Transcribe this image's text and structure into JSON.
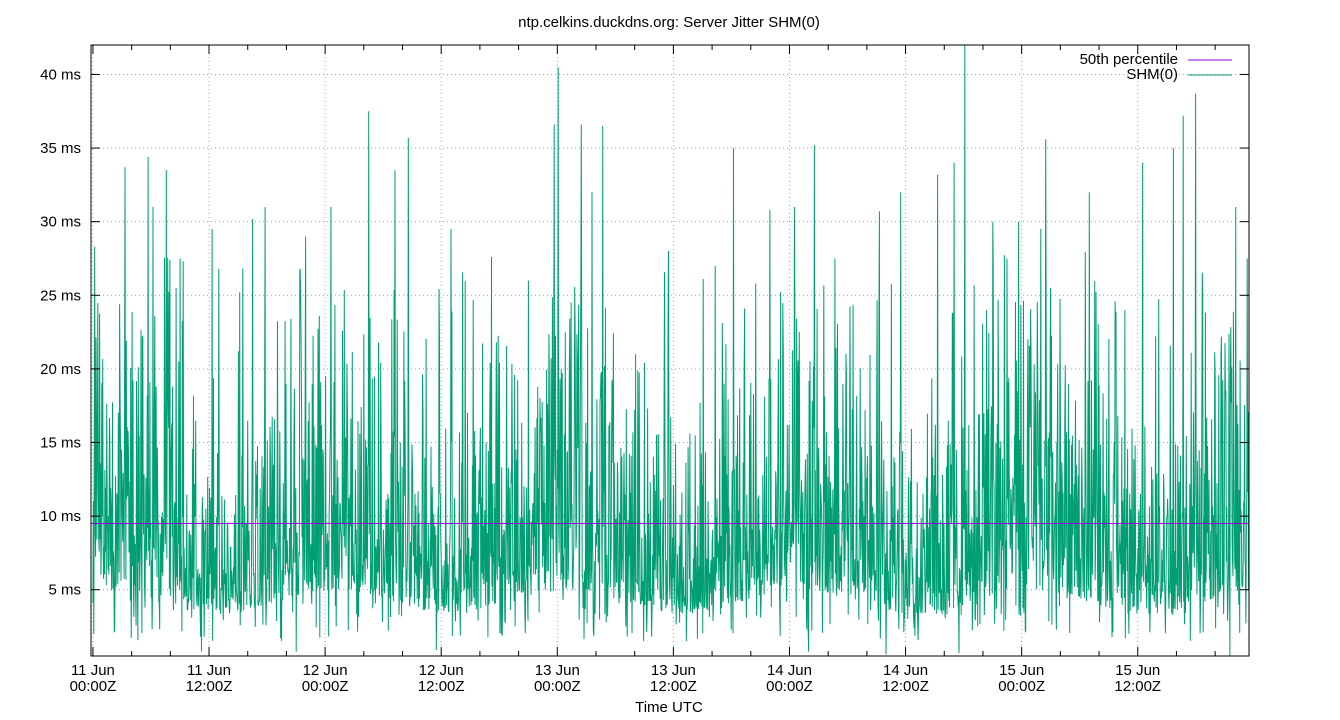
{
  "chart_data": {
    "type": "line",
    "title": "ntp.celkins.duckdns.org: Server Jitter SHM(0)",
    "xlabel": "Time UTC",
    "ylabel": "",
    "x_unit": "hours since 11 Jun 00:00Z",
    "xlim": [
      -0.2,
      119.5
    ],
    "ylim": [
      0.5,
      42
    ],
    "grid": true,
    "legend_position": "top-right",
    "x_ticks": [
      {
        "value": 0,
        "line1": "11 Jun",
        "line2": "00:00Z"
      },
      {
        "value": 12,
        "line1": "11 Jun",
        "line2": "12:00Z"
      },
      {
        "value": 24,
        "line1": "12 Jun",
        "line2": "00:00Z"
      },
      {
        "value": 36,
        "line1": "12 Jun",
        "line2": "12:00Z"
      },
      {
        "value": 48,
        "line1": "13 Jun",
        "line2": "00:00Z"
      },
      {
        "value": 60,
        "line1": "13 Jun",
        "line2": "12:00Z"
      },
      {
        "value": 72,
        "line1": "14 Jun",
        "line2": "00:00Z"
      },
      {
        "value": 84,
        "line1": "14 Jun",
        "line2": "12:00Z"
      },
      {
        "value": 96,
        "line1": "15 Jun",
        "line2": "00:00Z"
      },
      {
        "value": 108,
        "line1": "15 Jun",
        "line2": "12:00Z"
      }
    ],
    "y_ticks": [
      {
        "value": 5,
        "label": "5 ms"
      },
      {
        "value": 10,
        "label": "10 ms"
      },
      {
        "value": 15,
        "label": "15 ms"
      },
      {
        "value": 20,
        "label": "20 ms"
      },
      {
        "value": 25,
        "label": "25 ms"
      },
      {
        "value": 30,
        "label": "30 ms"
      },
      {
        "value": 35,
        "label": "35 ms"
      },
      {
        "value": 40,
        "label": "40 ms"
      }
    ],
    "series": [
      {
        "name": "50th percentile",
        "color": "#9400d3",
        "kind": "constant",
        "value": 9.5
      },
      {
        "name": "SHM(0)",
        "color": "#009e73",
        "kind": "dense-line",
        "typical_range": [
          1.5,
          25
        ],
        "median": 9.5,
        "peaks": [
          {
            "x": 0.2,
            "y": 28.3
          },
          {
            "x": 3.3,
            "y": 33.7
          },
          {
            "x": 5.7,
            "y": 34.4
          },
          {
            "x": 6.2,
            "y": 31.0
          },
          {
            "x": 7.6,
            "y": 33.5
          },
          {
            "x": 9.0,
            "y": 27.5
          },
          {
            "x": 12.3,
            "y": 29.5
          },
          {
            "x": 16.5,
            "y": 30.2
          },
          {
            "x": 17.8,
            "y": 31.0
          },
          {
            "x": 22.0,
            "y": 29.0
          },
          {
            "x": 24.6,
            "y": 31.0
          },
          {
            "x": 28.5,
            "y": 37.5
          },
          {
            "x": 31.2,
            "y": 33.5
          },
          {
            "x": 32.6,
            "y": 35.7
          },
          {
            "x": 37.0,
            "y": 29.5
          },
          {
            "x": 41.2,
            "y": 27.6
          },
          {
            "x": 45.0,
            "y": 26.0
          },
          {
            "x": 47.7,
            "y": 36.6
          },
          {
            "x": 48.1,
            "y": 40.5
          },
          {
            "x": 50.5,
            "y": 36.6
          },
          {
            "x": 51.6,
            "y": 32.0
          },
          {
            "x": 52.7,
            "y": 36.5
          },
          {
            "x": 59.5,
            "y": 28.0
          },
          {
            "x": 66.2,
            "y": 35.0
          },
          {
            "x": 70.0,
            "y": 30.8
          },
          {
            "x": 72.5,
            "y": 31.0
          },
          {
            "x": 74.0,
            "y": 33.6
          },
          {
            "x": 74.6,
            "y": 35.2
          },
          {
            "x": 76.7,
            "y": 27.5
          },
          {
            "x": 81.3,
            "y": 30.7
          },
          {
            "x": 83.5,
            "y": 32.0
          },
          {
            "x": 87.3,
            "y": 33.2
          },
          {
            "x": 89.0,
            "y": 34.0
          },
          {
            "x": 90.1,
            "y": 42.0
          },
          {
            "x": 93.0,
            "y": 30.0
          },
          {
            "x": 94.5,
            "y": 27.5
          },
          {
            "x": 95.7,
            "y": 30.0
          },
          {
            "x": 98.0,
            "y": 29.5
          },
          {
            "x": 99.0,
            "y": 25.5
          },
          {
            "x": 98.5,
            "y": 35.6
          },
          {
            "x": 103.0,
            "y": 32.0
          },
          {
            "x": 108.5,
            "y": 34.0
          },
          {
            "x": 111.7,
            "y": 35.0
          },
          {
            "x": 112.7,
            "y": 37.2
          },
          {
            "x": 114.0,
            "y": 38.7
          },
          {
            "x": 118.1,
            "y": 31.0
          },
          {
            "x": 119.3,
            "y": 27.5
          }
        ],
        "lows": [
          {
            "x": 0.1,
            "y": 2.0
          },
          {
            "x": 11.2,
            "y": 0.8
          },
          {
            "x": 21.0,
            "y": 0.8
          },
          {
            "x": 35.5,
            "y": 0.9
          },
          {
            "x": 74.0,
            "y": 0.8
          },
          {
            "x": 82.0,
            "y": 0.6
          },
          {
            "x": 89.5,
            "y": 0.7
          },
          {
            "x": 117.5,
            "y": 0.5
          }
        ]
      }
    ]
  }
}
